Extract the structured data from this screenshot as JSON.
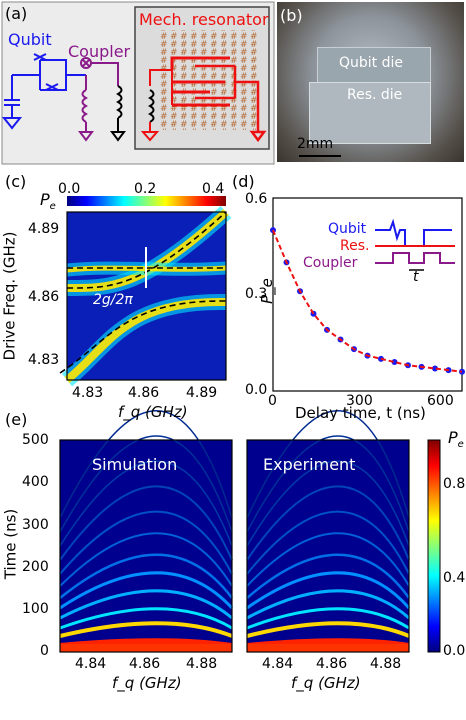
{
  "panels": {
    "a": {
      "label": "(a)",
      "qubit": "Qubit",
      "coupler": "Coupler",
      "resonator": "Mech. resonator"
    },
    "b": {
      "label": "(b)",
      "qubit_die": "Qubit die",
      "res_die": "Res. die",
      "scale": "2mm"
    },
    "c": {
      "label": "(c)",
      "colorbar_label": "P_e",
      "cb_ticks": [
        "0.0",
        "0.2",
        "0.4"
      ],
      "ylabel": "Drive Freq. (GHz)",
      "xlabel": "f_q (GHz)",
      "yticks": [
        "4.89",
        "4.86",
        "4.83"
      ],
      "xticks": [
        "4.83",
        "4.86",
        "4.89"
      ],
      "annotation": "2g/2π"
    },
    "d": {
      "label": "(d)",
      "ylabel": "P_e",
      "xlabel": "Delay time, t (ns)",
      "yticks": [
        "0.6",
        "0.3",
        "0.0"
      ],
      "xticks": [
        "0",
        "300",
        "600"
      ],
      "legend": [
        "Qubit",
        "Res.",
        "Coupler"
      ],
      "pulse_label": "t"
    },
    "e": {
      "label": "(e)",
      "ylabel": "Time (ns)",
      "xlabel": "f_q (GHz)",
      "yticks": [
        "500",
        "400",
        "300",
        "200",
        "100",
        "0"
      ],
      "xticks": [
        "4.84",
        "4.86",
        "4.88"
      ],
      "titles": [
        "Simulation",
        "Experiment"
      ],
      "colorbar_label": "P_e",
      "cb_ticks": [
        "0.8",
        "0.4",
        "0.0"
      ]
    }
  },
  "chart_data": [
    {
      "type": "heatmap",
      "panel": "c",
      "title": "",
      "xlabel": "f_q (GHz)",
      "ylabel": "Drive Freq. (GHz)",
      "xlim": [
        4.825,
        4.895
      ],
      "ylim": [
        4.822,
        4.897
      ],
      "colorbar_range": [
        0.0,
        0.4
      ],
      "avoided_crossing": {
        "resonator_freq": 4.863,
        "coupling_note": "2g/2π"
      }
    },
    {
      "type": "scatter",
      "panel": "d",
      "xlabel": "Delay time, t (ns)",
      "ylabel": "P_e",
      "xlim": [
        0,
        700
      ],
      "ylim": [
        0.0,
        0.6
      ],
      "x": [
        0,
        50,
        100,
        150,
        200,
        250,
        300,
        350,
        400,
        450,
        500,
        550,
        600,
        650,
        700
      ],
      "y": [
        0.5,
        0.4,
        0.31,
        0.24,
        0.19,
        0.16,
        0.13,
        0.11,
        0.1,
        0.09,
        0.08,
        0.075,
        0.07,
        0.065,
        0.06
      ]
    },
    {
      "type": "heatmap",
      "panel": "e-left",
      "title": "Simulation",
      "xlabel": "f_q (GHz)",
      "ylabel": "Time (ns)",
      "xlim": [
        4.83,
        4.88
      ],
      "ylim": [
        0,
        500
      ],
      "colorbar_range": [
        0.0,
        1.0
      ]
    },
    {
      "type": "heatmap",
      "panel": "e-right",
      "title": "Experiment",
      "xlabel": "f_q (GHz)",
      "ylabel": "Time (ns)",
      "xlim": [
        4.83,
        4.88
      ],
      "ylim": [
        0,
        500
      ],
      "colorbar_range": [
        0.0,
        1.0
      ]
    }
  ]
}
